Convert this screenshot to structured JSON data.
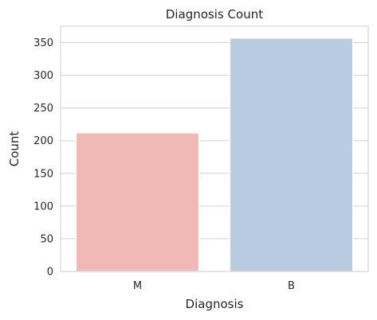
{
  "chart_data": {
    "type": "bar",
    "title": "Diagnosis Count",
    "xlabel": "Diagnosis",
    "ylabel": "Count",
    "categories": [
      "M",
      "B"
    ],
    "values": [
      212,
      357
    ],
    "colors": [
      "#f1b9b6",
      "#b8cbdf"
    ],
    "ylim": [
      0,
      375
    ],
    "yticks": [
      0,
      50,
      100,
      150,
      200,
      250,
      300,
      350
    ],
    "grid": "horizontal",
    "legend": "none"
  }
}
